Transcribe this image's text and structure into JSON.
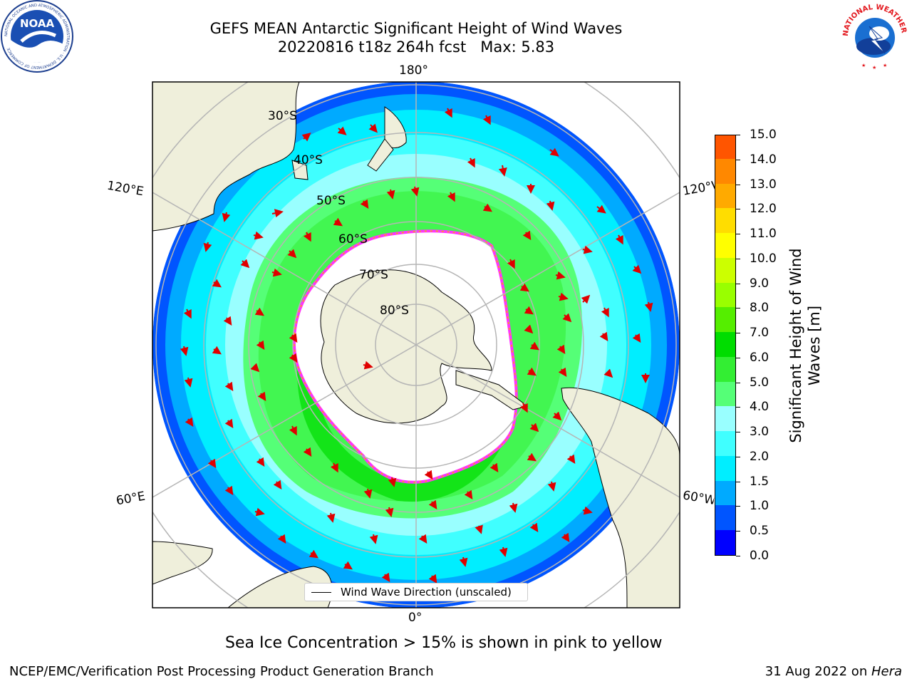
{
  "title": {
    "line1": "GEFS MEAN Antarctic Significant Height of Wind Waves",
    "line2": "20220816 t18z 264h fcst   Max: 5.83"
  },
  "logos": {
    "noaa_text": "NOAA",
    "noaa_ring_text": "NATIONAL OCEANIC AND ATMOSPHERIC ADMINISTRATION · U.S. DEPARTMENT OF COMMERCE",
    "nws_ring_text": "NATIONAL WEATHER SERVICE"
  },
  "map": {
    "projection": "south polar stereographic",
    "lon_labels": {
      "top": "180°",
      "bottom": "0°",
      "left_upper": "120°E",
      "left_lower": "60°E",
      "right_upper": "120°W",
      "right_lower": "60°W"
    },
    "lat_labels": [
      "30°S",
      "40°S",
      "50°S",
      "60°S",
      "70°S",
      "80°S"
    ],
    "land_color": "#efefdb",
    "ice_edge_colors": [
      "#ff33ff",
      "#ffaa00",
      "#ffff00"
    ]
  },
  "legend": {
    "label": "Wind Wave Direction (unscaled)"
  },
  "colorbar": {
    "title": "Significant Height of Wind Waves [m]",
    "ticks": [
      "0.0",
      "0.5",
      "1.0",
      "1.5",
      "2.0",
      "3.0",
      "4.0",
      "5.0",
      "6.0",
      "7.0",
      "8.0",
      "9.0",
      "10.0",
      "11.0",
      "12.0",
      "13.0",
      "14.0",
      "15.0"
    ],
    "colors": [
      "#0000ff",
      "#0055ff",
      "#00aaff",
      "#00eeff",
      "#40ffff",
      "#99ffff",
      "#55ff77",
      "#33ee33",
      "#00dd00",
      "#55ee00",
      "#99ff00",
      "#ccff00",
      "#ffff00",
      "#ffdd00",
      "#ffaa00",
      "#ff8800",
      "#ff5500",
      "#ff0000"
    ]
  },
  "caption": "Sea Ice Concentration > 15% is shown in pink to yellow",
  "footer": {
    "left": "NCEP/EMC/Verification Post Processing Product Generation Branch",
    "right_prefix": "31 Aug 2022 on ",
    "right_italic": "Hera"
  }
}
